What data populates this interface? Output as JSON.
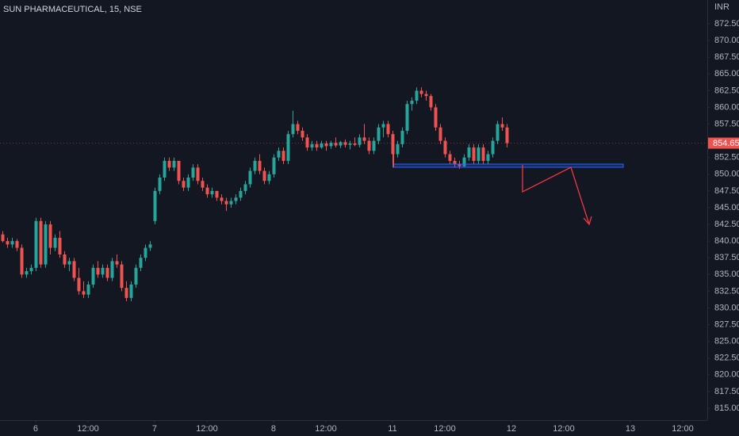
{
  "chart_data": {
    "type": "candlestick",
    "title": "SUN PHARMACEUTICAL, 15, NSE",
    "currency": "INR",
    "up_color": "#26a69a",
    "down_color": "#ef5350",
    "grid": false,
    "xlim": [
      -0.5,
      148.17
    ],
    "ylim": [
      813.22,
      876.06
    ],
    "xticks": [
      {
        "value": 7,
        "label": "6"
      },
      {
        "value": 18,
        "label": "12:00"
      },
      {
        "value": 32,
        "label": "7"
      },
      {
        "value": 43,
        "label": "12:00"
      },
      {
        "value": 57,
        "label": "8"
      },
      {
        "value": 68,
        "label": "12:00"
      },
      {
        "value": 82,
        "label": "11"
      },
      {
        "value": 93,
        "label": "12:00"
      },
      {
        "value": 107,
        "label": "12"
      },
      {
        "value": 118,
        "label": "12:00"
      },
      {
        "value": 132,
        "label": "13"
      },
      {
        "value": 143,
        "label": "12:00"
      }
    ],
    "yticks": [
      {
        "value": 872.5,
        "label": "872.50"
      },
      {
        "value": 870,
        "label": "870.00"
      },
      {
        "value": 867.5,
        "label": "867.50"
      },
      {
        "value": 865,
        "label": "865.00"
      },
      {
        "value": 862.5,
        "label": "862.50"
      },
      {
        "value": 860,
        "label": "860.00"
      },
      {
        "value": 857.5,
        "label": "857.50"
      },
      {
        "value": 852.5,
        "label": "852.50"
      },
      {
        "value": 850,
        "label": "850.00"
      },
      {
        "value": 847.5,
        "label": "847.50"
      },
      {
        "value": 845,
        "label": "845.00"
      },
      {
        "value": 842.5,
        "label": "842.50"
      },
      {
        "value": 840,
        "label": "840.00"
      },
      {
        "value": 837.5,
        "label": "837.50"
      },
      {
        "value": 835,
        "label": "835.00"
      },
      {
        "value": 832.5,
        "label": "832.50"
      },
      {
        "value": 830,
        "label": "830.00"
      },
      {
        "value": 827.5,
        "label": "827.50"
      },
      {
        "value": 825,
        "label": "825.00"
      },
      {
        "value": 822.5,
        "label": "822.50"
      },
      {
        "value": 820,
        "label": "820.00"
      },
      {
        "value": 817.5,
        "label": "817.50"
      },
      {
        "value": 815,
        "label": "815.00"
      }
    ],
    "open": [
      841,
      840,
      839.5,
      840,
      839,
      835,
      835.5,
      836,
      843,
      836.5,
      842.5,
      839,
      840.5,
      838,
      836.5,
      837,
      834.5,
      832.5,
      832,
      833.5,
      836,
      835,
      836,
      834.5,
      837,
      836.5,
      833,
      831.5,
      833.5,
      836,
      837.5,
      839,
      843,
      847.5,
      849.5,
      852,
      851,
      852,
      849,
      848,
      849.5,
      851,
      849,
      848,
      847,
      847.5,
      846.5,
      846,
      845.5,
      846,
      846.5,
      847.5,
      848.5,
      850.5,
      852,
      850.5,
      849,
      850,
      852.5,
      853.5,
      852,
      856,
      857.5,
      856.5,
      855.5,
      854,
      854.5,
      854,
      854.6,
      854.2,
      854.7,
      854.3,
      854.8,
      854.4,
      854.6,
      854.4,
      855.5,
      855,
      853.5,
      855,
      857,
      857.5,
      856,
      853,
      854.5,
      856.5,
      860.5,
      861,
      862.5,
      862,
      861.7,
      860,
      857,
      855,
      853,
      852,
      851.5,
      851.2,
      852.5,
      854,
      852,
      854,
      852,
      853,
      855,
      857.5,
      857
    ],
    "high": [
      841.5,
      840.5,
      840.5,
      840.3,
      839.5,
      836,
      836.5,
      843.5,
      843.5,
      843,
      843,
      841,
      841.5,
      838.5,
      837.5,
      837.5,
      836,
      834,
      834,
      836.5,
      837,
      836.5,
      836.5,
      837.5,
      838,
      837,
      834,
      834,
      836.5,
      838,
      839.5,
      840,
      848,
      850,
      852.5,
      852.5,
      852.5,
      852,
      849.5,
      850,
      851.5,
      851.5,
      849.5,
      848.5,
      848,
      847.5,
      847,
      846.5,
      846.5,
      847,
      848,
      849,
      851,
      852.5,
      853,
      851,
      850.5,
      853,
      854,
      854,
      856.5,
      859.5,
      858,
      857,
      856,
      855,
      855,
      855,
      855,
      855,
      855.5,
      855,
      855.2,
      855,
      855.5,
      856,
      857.5,
      855.5,
      855.5,
      857.5,
      858,
      858,
      856.5,
      855,
      857,
      861,
      861.5,
      863,
      863,
      862.5,
      862,
      860.5,
      857.5,
      855.5,
      853.5,
      852.5,
      852,
      853,
      854.5,
      854.5,
      854.5,
      854.5,
      853.5,
      855.5,
      858,
      858.5,
      857.5
    ],
    "low": [
      839.8,
      839,
      839,
      838.5,
      834.5,
      834.5,
      835,
      835.5,
      836,
      836,
      838,
      838.5,
      837.5,
      836,
      835.5,
      834,
      832,
      831.5,
      831.5,
      833,
      834.5,
      834.5,
      834,
      834,
      836,
      832.5,
      831,
      831,
      833,
      835.5,
      837,
      838.5,
      842.5,
      847,
      849,
      850.5,
      850.5,
      848.5,
      847.5,
      847.5,
      849,
      848.5,
      847.5,
      846.5,
      846.5,
      846,
      845.5,
      844.5,
      845,
      845.5,
      846,
      847,
      848,
      850,
      850,
      848.5,
      848.5,
      849.5,
      852,
      851.5,
      851.5,
      855.5,
      856,
      855,
      853.5,
      853.5,
      853.5,
      853.8,
      853.5,
      853.8,
      854,
      853.9,
      854,
      853.7,
      854.2,
      854,
      854.5,
      853,
      853,
      854.5,
      855.5,
      855.5,
      851,
      852.5,
      854,
      856,
      859.5,
      860.5,
      861.5,
      861,
      859.5,
      856.5,
      854.5,
      852.5,
      851.5,
      851,
      850.8,
      851,
      852,
      851.5,
      851.5,
      851.5,
      851.5,
      852.5,
      854.5,
      856.5,
      854
    ],
    "close": [
      840,
      839.5,
      840,
      839,
      835,
      835.5,
      836,
      843,
      836.5,
      842.5,
      839,
      840.5,
      838,
      836.5,
      837,
      834.5,
      832.5,
      832,
      833.5,
      836,
      835,
      836,
      834.5,
      837,
      836.5,
      833,
      831.5,
      833.5,
      836,
      837.5,
      839,
      839.5,
      847.5,
      849.5,
      852,
      851,
      852,
      849,
      848,
      849.5,
      851,
      849,
      848,
      847,
      847.5,
      846.5,
      846,
      845.5,
      846,
      846.5,
      847.5,
      848.5,
      850.5,
      852,
      850.5,
      849,
      850,
      852.5,
      853.5,
      852,
      856,
      857.5,
      856.5,
      855.5,
      854,
      854.5,
      854,
      854.6,
      854.2,
      854.7,
      854.3,
      854.8,
      854.4,
      854.6,
      854.4,
      855.5,
      855,
      853.5,
      855,
      857,
      857.5,
      856,
      853,
      854.5,
      856.5,
      860.5,
      861,
      862.5,
      862,
      861.7,
      860,
      857,
      855,
      853,
      852,
      851.5,
      851.2,
      852.5,
      854,
      852,
      854,
      852,
      853,
      855,
      857.5,
      857,
      854.65
    ]
  }
}
